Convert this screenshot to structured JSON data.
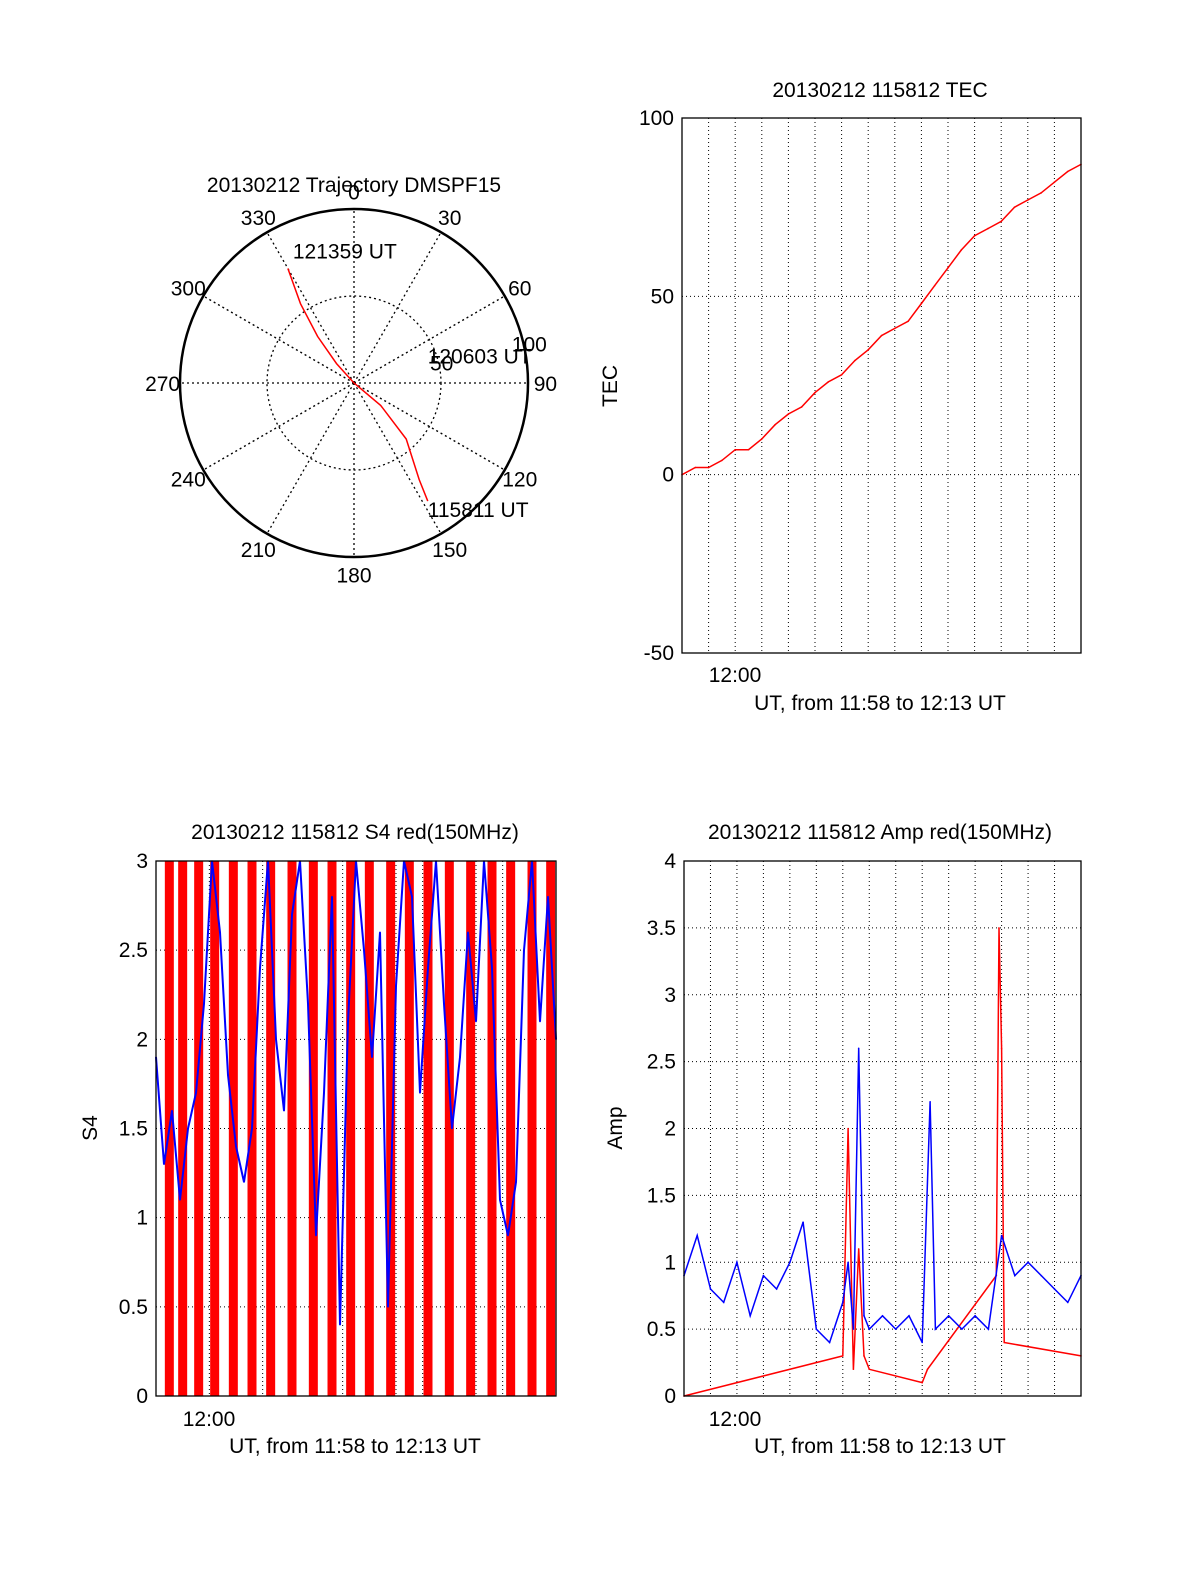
{
  "chart_data": [
    {
      "type": "polar",
      "title": "20130212 Trajectory DMSPF15",
      "azimuth_labels": [
        "0",
        "30",
        "60",
        "90",
        "120",
        "150",
        "180",
        "210",
        "240",
        "270",
        "300",
        "330"
      ],
      "radial_labels": [
        "50",
        "100"
      ],
      "radial_range": [
        0,
        100
      ],
      "grid": true,
      "trajectory": {
        "color": "#ff0000",
        "points": [
          {
            "az": 330,
            "r": 76
          },
          {
            "az": 326,
            "r": 55
          },
          {
            "az": 322,
            "r": 34
          },
          {
            "az": 318,
            "r": 15
          },
          {
            "az": 0,
            "r": 0
          },
          {
            "az": 130,
            "r": 20
          },
          {
            "az": 137,
            "r": 44
          },
          {
            "az": 146,
            "r": 67
          },
          {
            "az": 148,
            "r": 80
          }
        ],
        "annotations": [
          {
            "text": "121359 UT",
            "az": 330,
            "r": 76
          },
          {
            "text": "120603 UT",
            "az": 75,
            "r": 26
          },
          {
            "text": "115811 UT",
            "az": 148,
            "r": 80
          }
        ]
      }
    },
    {
      "type": "line",
      "title": "20130212 115812 TEC",
      "ylabel": "TEC",
      "xlabel": "UT, from 11:58 to 12:13 UT",
      "xtick_labels": [
        "12:00"
      ],
      "x_unit": "minutes from 11:58",
      "xlim": [
        0,
        15
      ],
      "ylim": [
        -50,
        100
      ],
      "yticks": [
        -50,
        0,
        50,
        100
      ],
      "grid": true,
      "series": [
        {
          "color": "#ff0000",
          "x": [
            0,
            0.5,
            1,
            1.5,
            2,
            2.5,
            3,
            3.5,
            4,
            4.5,
            5,
            5.5,
            6,
            6.5,
            7,
            7.5,
            8,
            8.5,
            9,
            9.5,
            10,
            10.5,
            11,
            11.5,
            12,
            12.5,
            13,
            13.5,
            14,
            14.5,
            15
          ],
          "values": [
            0,
            2,
            2,
            4,
            7,
            7,
            10,
            14,
            17,
            19,
            23,
            26,
            28,
            32,
            35,
            39,
            41,
            43,
            48,
            53,
            58,
            63,
            67,
            69,
            71,
            75,
            77,
            79,
            82,
            85,
            87
          ]
        }
      ]
    },
    {
      "type": "line",
      "title": "20130212 115812 S4 red(150MHz)",
      "ylabel": "S4",
      "xlabel": "UT, from 11:58 to 12:13 UT",
      "xtick_labels": [
        "12:00"
      ],
      "x_unit": "minutes from 11:58",
      "xlim": [
        0,
        15
      ],
      "ylim": [
        0,
        3
      ],
      "yticks": [
        0,
        0.5,
        1,
        1.5,
        2,
        2.5,
        3
      ],
      "grid": true,
      "series": [
        {
          "color": "#ff0000",
          "x": [
            0.2,
            0.5,
            0.8,
            1.0,
            1.2,
            1.6,
            1.9,
            2.2,
            2.6,
            2.9,
            3.2,
            3.6,
            4.0,
            4.3,
            4.7,
            5.1,
            5.4,
            5.9,
            6.2,
            6.6,
            7.0,
            7.3,
            7.7,
            8.0,
            8.4,
            8.8,
            9.2,
            9.5,
            9.9,
            10.2,
            10.6,
            11.0,
            11.4,
            11.8,
            12.2,
            12.6,
            13.0,
            13.3,
            13.7,
            14.1,
            14.5,
            14.8
          ],
          "values": [
            0,
            3,
            0,
            3,
            0,
            3,
            0,
            3,
            0,
            3,
            0,
            3,
            0,
            3,
            0,
            3,
            0,
            3,
            0,
            3,
            0,
            3,
            0,
            3,
            0,
            3,
            0,
            3,
            0,
            3,
            0,
            3,
            0,
            3,
            0,
            3,
            0,
            3,
            0,
            3,
            0,
            3
          ]
        },
        {
          "color": "#0000ff",
          "x": [
            0,
            0.3,
            0.6,
            0.9,
            1.2,
            1.5,
            1.8,
            2.1,
            2.4,
            2.7,
            3.0,
            3.3,
            3.6,
            3.9,
            4.2,
            4.5,
            4.8,
            5.1,
            5.4,
            5.7,
            6.0,
            6.3,
            6.6,
            6.9,
            7.2,
            7.5,
            7.8,
            8.1,
            8.4,
            8.7,
            9.0,
            9.3,
            9.6,
            9.9,
            10.2,
            10.5,
            10.8,
            11.1,
            11.4,
            11.7,
            12.0,
            12.3,
            12.6,
            12.9,
            13.2,
            13.5,
            13.8,
            14.1,
            14.4,
            14.7,
            15.0
          ],
          "values": [
            1.9,
            1.3,
            1.6,
            1.1,
            1.5,
            1.7,
            2.2,
            3.0,
            2.6,
            1.8,
            1.4,
            1.2,
            1.5,
            2.4,
            3.0,
            2.0,
            1.6,
            2.7,
            3.0,
            2.2,
            0.9,
            1.7,
            2.8,
            0.4,
            2.1,
            3.0,
            2.5,
            1.9,
            2.6,
            0.5,
            2.3,
            3.0,
            2.8,
            1.7,
            2.4,
            3.0,
            2.2,
            1.5,
            1.9,
            2.6,
            2.1,
            3.0,
            2.4,
            1.1,
            0.9,
            1.2,
            2.5,
            3.0,
            2.1,
            2.8,
            2.0
          ]
        }
      ]
    },
    {
      "type": "line",
      "title": "20130212 115812 Amp red(150MHz)",
      "ylabel": "Amp",
      "xlabel": "UT, from 11:58 to 12:13 UT",
      "xtick_labels": [
        "12:00"
      ],
      "x_unit": "minutes from 11:58",
      "xlim": [
        0,
        15
      ],
      "ylim": [
        0,
        4
      ],
      "yticks": [
        0,
        0.5,
        1,
        1.5,
        2,
        2.5,
        3,
        3.5,
        4
      ],
      "grid": true,
      "series": [
        {
          "color": "#ff0000",
          "x": [
            0,
            6.0,
            6.2,
            6.4,
            6.6,
            6.8,
            7.0,
            9.0,
            9.2,
            11.8,
            11.9,
            12.0,
            12.1,
            15
          ],
          "values": [
            0,
            0.3,
            2.0,
            0.2,
            1.1,
            0.3,
            0.2,
            0.1,
            0.2,
            0.9,
            3.5,
            2.6,
            0.4,
            0.3
          ]
        },
        {
          "color": "#0000ff",
          "x": [
            0,
            0.5,
            1.0,
            1.5,
            2.0,
            2.5,
            3.0,
            3.5,
            4.0,
            4.5,
            5.0,
            5.5,
            6.0,
            6.2,
            6.4,
            6.6,
            6.8,
            7.0,
            7.5,
            8.0,
            8.5,
            9.0,
            9.3,
            9.5,
            10.0,
            10.5,
            11.0,
            11.5,
            12.0,
            12.5,
            13.0,
            13.5,
            14.0,
            14.5,
            15.0
          ],
          "values": [
            0.9,
            1.2,
            0.8,
            0.7,
            1.0,
            0.6,
            0.9,
            0.8,
            1.0,
            1.3,
            0.5,
            0.4,
            0.7,
            1.0,
            0.5,
            2.6,
            0.6,
            0.5,
            0.6,
            0.5,
            0.6,
            0.4,
            2.2,
            0.5,
            0.6,
            0.5,
            0.6,
            0.5,
            1.2,
            0.9,
            1.0,
            0.9,
            0.8,
            0.7,
            0.9
          ]
        }
      ]
    }
  ]
}
